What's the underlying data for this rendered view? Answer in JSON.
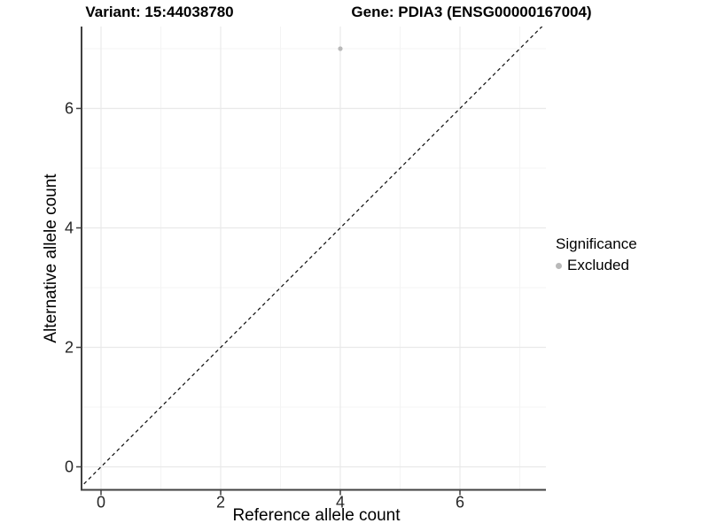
{
  "chart_data": {
    "type": "scatter",
    "title_left": "Variant: 15:44038780",
    "title_right": "Gene: PDIA3 (ENSG00000167004)",
    "xlabel": "Reference allele count",
    "ylabel": "Alternative allele count",
    "x_ticks": [
      0,
      2,
      4,
      6
    ],
    "y_ticks": [
      0,
      2,
      4,
      6
    ],
    "x_minor_ticks": [
      1,
      3,
      5,
      7
    ],
    "y_minor_ticks": [
      1,
      3,
      5,
      7
    ],
    "xlim": [
      -0.35,
      7.45
    ],
    "ylim": [
      -0.4,
      7.4
    ],
    "grid": true,
    "series": [
      {
        "name": "Excluded",
        "color": "#b9b9b9",
        "points": [
          {
            "x": 4,
            "y": 7
          }
        ]
      }
    ],
    "reference_line": {
      "type": "identity y=x",
      "style": "dashed",
      "color": "#1a1a1a"
    },
    "legend": {
      "title": "Significance",
      "position": "right",
      "entries": [
        {
          "label": "Excluded",
          "color": "#b9b9b9"
        }
      ]
    }
  },
  "colors": {
    "background": "#ffffff",
    "grid_major": "#e9e9e9",
    "grid_minor": "#f4f4f4",
    "axis": "#404040",
    "tick_text": "#262626",
    "point": "#b9b9b9"
  }
}
